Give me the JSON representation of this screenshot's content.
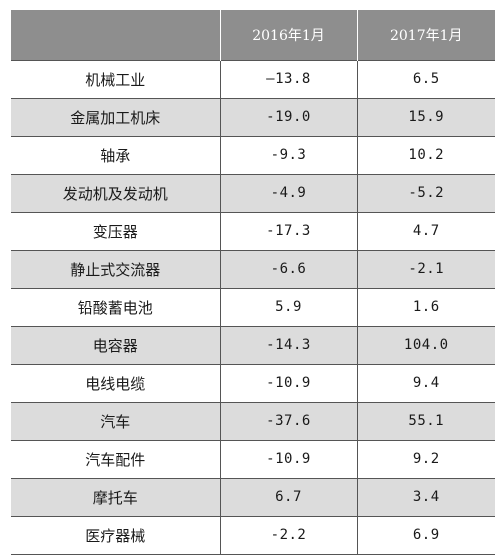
{
  "header": {
    "col1": "",
    "col2": "2016年1月",
    "col3": "2017年1月"
  },
  "rows": [
    {
      "name": "机械工业",
      "v2016": "—13.8",
      "v2017": "6.5"
    },
    {
      "name": "金属加工机床",
      "v2016": "-19.0",
      "v2017": "15.9"
    },
    {
      "name": "轴承",
      "v2016": "-9.3",
      "v2017": "10.2"
    },
    {
      "name": "发动机及发动机",
      "v2016": "-4.9",
      "v2017": "-5.2"
    },
    {
      "name": "变压器",
      "v2016": "-17.3",
      "v2017": "4.7"
    },
    {
      "name": "静止式交流器",
      "v2016": "-6.6",
      "v2017": "-2.1"
    },
    {
      "name": "铅酸蓄电池",
      "v2016": "5.9",
      "v2017": "1.6"
    },
    {
      "name": "电容器",
      "v2016": "-14.3",
      "v2017": "104.0"
    },
    {
      "name": "电线电缆",
      "v2016": "-10.9",
      "v2017": "9.4"
    },
    {
      "name": "汽车",
      "v2016": "-37.6",
      "v2017": "55.1"
    },
    {
      "name": "汽车配件",
      "v2016": "-10.9",
      "v2017": "9.2"
    },
    {
      "name": "摩托车",
      "v2016": "6.7",
      "v2017": "3.4"
    },
    {
      "name": "医疗器械",
      "v2016": "-2.2",
      "v2017": "6.9"
    }
  ]
}
